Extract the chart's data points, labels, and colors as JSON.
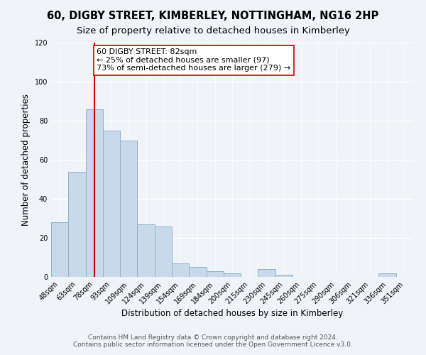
{
  "title": "60, DIGBY STREET, KIMBERLEY, NOTTINGHAM, NG16 2HP",
  "subtitle": "Size of property relative to detached houses in Kimberley",
  "xlabel": "Distribution of detached houses by size in Kimberley",
  "ylabel": "Number of detached properties",
  "bar_values": [
    28,
    54,
    86,
    75,
    70,
    27,
    26,
    7,
    5,
    3,
    2,
    0,
    4,
    1,
    0,
    0,
    0,
    0,
    0,
    2,
    0
  ],
  "bin_labels": [
    "48sqm",
    "63sqm",
    "78sqm",
    "93sqm",
    "109sqm",
    "124sqm",
    "139sqm",
    "154sqm",
    "169sqm",
    "184sqm",
    "200sqm",
    "215sqm",
    "230sqm",
    "245sqm",
    "260sqm",
    "275sqm",
    "290sqm",
    "306sqm",
    "321sqm",
    "336sqm",
    "351sqm"
  ],
  "bar_color": "#c8daea",
  "bar_edge_color": "#8ab4cc",
  "vline_x_index": 2,
  "vline_color": "#cc0000",
  "annotation_text": "60 DIGBY STREET: 82sqm\n← 25% of detached houses are smaller (97)\n73% of semi-detached houses are larger (279) →",
  "annotation_box_color": "white",
  "annotation_box_edge_color": "#cc0000",
  "ylim": [
    0,
    120
  ],
  "yticks": [
    0,
    20,
    40,
    60,
    80,
    100,
    120
  ],
  "footer_line1": "Contains HM Land Registry data © Crown copyright and database right 2024.",
  "footer_line2": "Contains public sector information licensed under the Open Government Licence v3.0.",
  "background_color": "#f0f4f8",
  "grid_color": "#ffffff",
  "title_fontsize": 10.5,
  "subtitle_fontsize": 9.5,
  "axis_label_fontsize": 8.5,
  "tick_fontsize": 7,
  "footer_fontsize": 6.5,
  "annotation_fontsize": 8
}
